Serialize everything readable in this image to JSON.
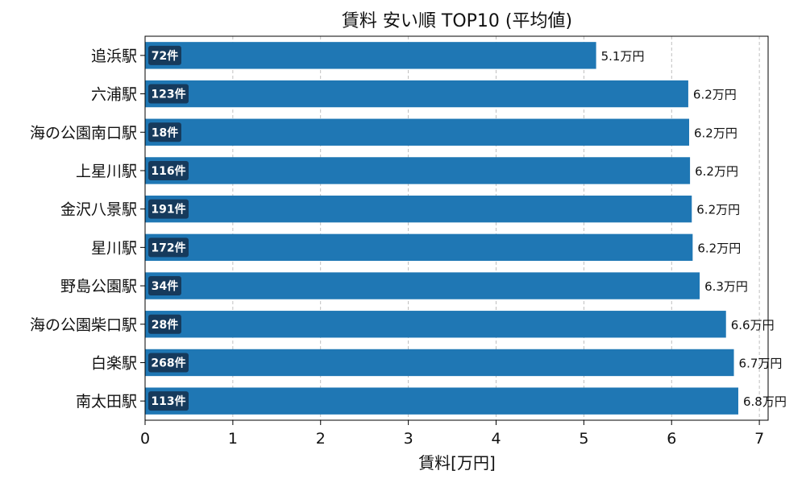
{
  "chart_data": {
    "type": "bar",
    "orientation": "horizontal",
    "title": "賃料 安い順 TOP10 (平均値)",
    "xlabel": "賃料[万円]",
    "ylabel": "",
    "xlim": [
      0,
      7.1
    ],
    "xticks": [
      0,
      1,
      2,
      3,
      4,
      5,
      6,
      7
    ],
    "grid": {
      "x": true,
      "y": false,
      "style": "dashed"
    },
    "bar_color": "#1f77b4",
    "badge_color": "#163a5c",
    "value_suffix": "万円",
    "count_suffix": "件",
    "categories": [
      "追浜駅",
      "六浦駅",
      "海の公園南口駅",
      "上星川駅",
      "金沢八景駅",
      "星川駅",
      "野島公園駅",
      "海の公園柴口駅",
      "白楽駅",
      "南太田駅"
    ],
    "values": [
      5.14,
      6.19,
      6.2,
      6.21,
      6.23,
      6.24,
      6.32,
      6.62,
      6.71,
      6.76
    ],
    "value_labels": [
      "5.1万円",
      "6.2万円",
      "6.2万円",
      "6.2万円",
      "6.2万円",
      "6.2万円",
      "6.3万円",
      "6.6万円",
      "6.7万円",
      "6.8万円"
    ],
    "counts": [
      72,
      123,
      18,
      116,
      191,
      172,
      34,
      28,
      268,
      113
    ]
  }
}
